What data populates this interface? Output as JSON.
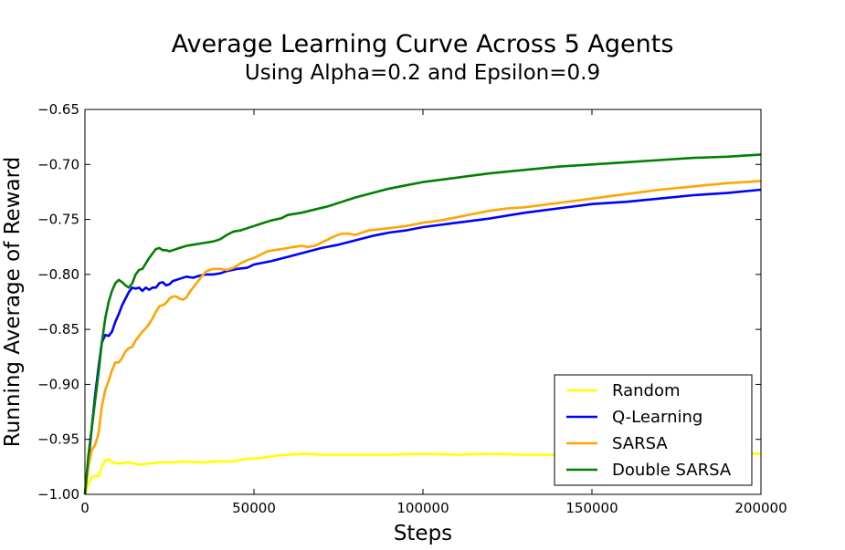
{
  "chart_data": {
    "type": "line",
    "title": "Average Learning Curve Across 5 Agents",
    "subtitle": "Using Alpha=0.2 and Epsilon=0.9",
    "xlabel": "Steps",
    "ylabel": "Running Average of Reward",
    "xlim": [
      0,
      200000
    ],
    "ylim": [
      -1.0,
      -0.65
    ],
    "x_ticks": [
      0,
      50000,
      100000,
      150000,
      200000
    ],
    "x_tick_labels": [
      "0",
      "50000",
      "100000",
      "150000",
      "200000"
    ],
    "y_ticks": [
      -1.0,
      -0.95,
      -0.9,
      -0.85,
      -0.8,
      -0.75,
      -0.7,
      -0.65
    ],
    "y_tick_labels": [
      "−1.00",
      "−0.95",
      "−0.90",
      "−0.85",
      "−0.80",
      "−0.75",
      "−0.70",
      "−0.65"
    ],
    "grid": false,
    "legend_position": "bottom-right",
    "series": [
      {
        "name": "Random",
        "color": "#ffff00",
        "points": [
          [
            0,
            -1.0
          ],
          [
            1000,
            -0.99
          ],
          [
            2000,
            -0.985
          ],
          [
            3000,
            -0.983
          ],
          [
            4000,
            -0.984
          ],
          [
            5000,
            -0.975
          ],
          [
            6000,
            -0.969
          ],
          [
            7000,
            -0.968
          ],
          [
            8000,
            -0.971
          ],
          [
            10000,
            -0.972
          ],
          [
            13000,
            -0.971
          ],
          [
            16000,
            -0.973
          ],
          [
            19000,
            -0.972
          ],
          [
            22000,
            -0.971
          ],
          [
            26000,
            -0.971
          ],
          [
            30000,
            -0.97
          ],
          [
            35000,
            -0.971
          ],
          [
            40000,
            -0.97
          ],
          [
            44000,
            -0.97
          ],
          [
            47000,
            -0.968
          ],
          [
            52000,
            -0.967
          ],
          [
            56000,
            -0.965
          ],
          [
            60000,
            -0.964
          ],
          [
            65000,
            -0.963
          ],
          [
            70000,
            -0.964
          ],
          [
            80000,
            -0.964
          ],
          [
            90000,
            -0.964
          ],
          [
            100000,
            -0.963
          ],
          [
            110000,
            -0.964
          ],
          [
            120000,
            -0.963
          ],
          [
            130000,
            -0.964
          ],
          [
            140000,
            -0.964
          ],
          [
            150000,
            -0.963
          ],
          [
            160000,
            -0.963
          ],
          [
            170000,
            -0.964
          ],
          [
            180000,
            -0.963
          ],
          [
            190000,
            -0.963
          ],
          [
            200000,
            -0.963
          ]
        ]
      },
      {
        "name": "Q-Learning",
        "color": "#0000ff",
        "points": [
          [
            0,
            -1.0
          ],
          [
            1000,
            -0.97
          ],
          [
            2000,
            -0.94
          ],
          [
            3000,
            -0.91
          ],
          [
            4000,
            -0.885
          ],
          [
            5000,
            -0.862
          ],
          [
            6000,
            -0.855
          ],
          [
            7000,
            -0.856
          ],
          [
            8000,
            -0.852
          ],
          [
            9000,
            -0.843
          ],
          [
            10000,
            -0.836
          ],
          [
            11000,
            -0.828
          ],
          [
            12000,
            -0.822
          ],
          [
            13000,
            -0.816
          ],
          [
            14000,
            -0.812
          ],
          [
            15000,
            -0.813
          ],
          [
            16000,
            -0.812
          ],
          [
            17000,
            -0.815
          ],
          [
            18000,
            -0.812
          ],
          [
            19000,
            -0.814
          ],
          [
            20000,
            -0.812
          ],
          [
            21000,
            -0.812
          ],
          [
            22000,
            -0.808
          ],
          [
            23000,
            -0.807
          ],
          [
            24000,
            -0.81
          ],
          [
            25000,
            -0.809
          ],
          [
            26000,
            -0.806
          ],
          [
            28000,
            -0.804
          ],
          [
            30000,
            -0.802
          ],
          [
            32000,
            -0.803
          ],
          [
            34000,
            -0.801
          ],
          [
            36000,
            -0.8
          ],
          [
            38000,
            -0.8
          ],
          [
            40000,
            -0.799
          ],
          [
            42000,
            -0.797
          ],
          [
            45000,
            -0.795
          ],
          [
            48000,
            -0.794
          ],
          [
            50000,
            -0.791
          ],
          [
            55000,
            -0.788
          ],
          [
            60000,
            -0.784
          ],
          [
            65000,
            -0.78
          ],
          [
            70000,
            -0.776
          ],
          [
            75000,
            -0.773
          ],
          [
            80000,
            -0.769
          ],
          [
            85000,
            -0.765
          ],
          [
            90000,
            -0.762
          ],
          [
            95000,
            -0.76
          ],
          [
            100000,
            -0.757
          ],
          [
            110000,
            -0.753
          ],
          [
            120000,
            -0.749
          ],
          [
            130000,
            -0.744
          ],
          [
            140000,
            -0.74
          ],
          [
            150000,
            -0.736
          ],
          [
            160000,
            -0.734
          ],
          [
            170000,
            -0.731
          ],
          [
            180000,
            -0.728
          ],
          [
            190000,
            -0.726
          ],
          [
            200000,
            -0.723
          ]
        ]
      },
      {
        "name": "SARSA",
        "color": "#ffa500",
        "points": [
          [
            0,
            -1.0
          ],
          [
            1000,
            -0.975
          ],
          [
            2000,
            -0.96
          ],
          [
            3000,
            -0.955
          ],
          [
            4000,
            -0.945
          ],
          [
            5000,
            -0.92
          ],
          [
            6000,
            -0.905
          ],
          [
            7000,
            -0.897
          ],
          [
            8000,
            -0.887
          ],
          [
            9000,
            -0.88
          ],
          [
            10000,
            -0.88
          ],
          [
            11000,
            -0.876
          ],
          [
            12000,
            -0.87
          ],
          [
            13000,
            -0.867
          ],
          [
            14000,
            -0.866
          ],
          [
            15000,
            -0.86
          ],
          [
            16000,
            -0.856
          ],
          [
            17000,
            -0.852
          ],
          [
            18000,
            -0.849
          ],
          [
            19000,
            -0.845
          ],
          [
            20000,
            -0.84
          ],
          [
            21000,
            -0.834
          ],
          [
            22000,
            -0.829
          ],
          [
            23000,
            -0.828
          ],
          [
            24000,
            -0.826
          ],
          [
            25000,
            -0.822
          ],
          [
            26000,
            -0.82
          ],
          [
            27000,
            -0.82
          ],
          [
            28000,
            -0.822
          ],
          [
            29000,
            -0.823
          ],
          [
            30000,
            -0.821
          ],
          [
            31000,
            -0.816
          ],
          [
            32000,
            -0.812
          ],
          [
            33000,
            -0.808
          ],
          [
            34000,
            -0.804
          ],
          [
            35000,
            -0.8
          ],
          [
            36000,
            -0.797
          ],
          [
            38000,
            -0.795
          ],
          [
            40000,
            -0.795
          ],
          [
            42000,
            -0.796
          ],
          [
            44000,
            -0.794
          ],
          [
            46000,
            -0.79
          ],
          [
            48000,
            -0.787
          ],
          [
            50000,
            -0.785
          ],
          [
            52000,
            -0.782
          ],
          [
            54000,
            -0.779
          ],
          [
            56000,
            -0.778
          ],
          [
            58000,
            -0.777
          ],
          [
            60000,
            -0.776
          ],
          [
            62000,
            -0.775
          ],
          [
            64000,
            -0.774
          ],
          [
            66000,
            -0.775
          ],
          [
            68000,
            -0.774
          ],
          [
            70000,
            -0.771
          ],
          [
            72000,
            -0.768
          ],
          [
            74000,
            -0.765
          ],
          [
            76000,
            -0.763
          ],
          [
            78000,
            -0.763
          ],
          [
            80000,
            -0.764
          ],
          [
            84000,
            -0.76
          ],
          [
            90000,
            -0.758
          ],
          [
            95000,
            -0.756
          ],
          [
            100000,
            -0.753
          ],
          [
            105000,
            -0.751
          ],
          [
            110000,
            -0.748
          ],
          [
            115000,
            -0.745
          ],
          [
            120000,
            -0.742
          ],
          [
            125000,
            -0.74
          ],
          [
            130000,
            -0.739
          ],
          [
            140000,
            -0.735
          ],
          [
            150000,
            -0.731
          ],
          [
            160000,
            -0.727
          ],
          [
            170000,
            -0.723
          ],
          [
            180000,
            -0.72
          ],
          [
            190000,
            -0.717
          ],
          [
            200000,
            -0.715
          ]
        ]
      },
      {
        "name": "Double SARSA",
        "color": "#008000",
        "points": [
          [
            0,
            -1.0
          ],
          [
            1000,
            -0.965
          ],
          [
            2000,
            -0.94
          ],
          [
            3000,
            -0.915
          ],
          [
            4000,
            -0.89
          ],
          [
            5000,
            -0.862
          ],
          [
            6000,
            -0.84
          ],
          [
            7000,
            -0.825
          ],
          [
            8000,
            -0.815
          ],
          [
            9000,
            -0.808
          ],
          [
            10000,
            -0.805
          ],
          [
            11000,
            -0.807
          ],
          [
            12000,
            -0.81
          ],
          [
            13000,
            -0.812
          ],
          [
            14000,
            -0.808
          ],
          [
            15000,
            -0.8
          ],
          [
            16000,
            -0.796
          ],
          [
            17000,
            -0.795
          ],
          [
            18000,
            -0.79
          ],
          [
            19000,
            -0.785
          ],
          [
            20000,
            -0.781
          ],
          [
            21000,
            -0.777
          ],
          [
            22000,
            -0.776
          ],
          [
            23000,
            -0.778
          ],
          [
            24000,
            -0.778
          ],
          [
            25000,
            -0.779
          ],
          [
            26000,
            -0.778
          ],
          [
            28000,
            -0.776
          ],
          [
            30000,
            -0.774
          ],
          [
            32000,
            -0.773
          ],
          [
            34000,
            -0.772
          ],
          [
            36000,
            -0.771
          ],
          [
            38000,
            -0.77
          ],
          [
            40000,
            -0.768
          ],
          [
            42000,
            -0.764
          ],
          [
            44000,
            -0.761
          ],
          [
            46000,
            -0.76
          ],
          [
            48000,
            -0.758
          ],
          [
            50000,
            -0.756
          ],
          [
            52000,
            -0.754
          ],
          [
            55000,
            -0.751
          ],
          [
            58000,
            -0.749
          ],
          [
            60000,
            -0.746
          ],
          [
            64000,
            -0.744
          ],
          [
            68000,
            -0.741
          ],
          [
            72000,
            -0.738
          ],
          [
            76000,
            -0.734
          ],
          [
            80000,
            -0.73
          ],
          [
            85000,
            -0.726
          ],
          [
            90000,
            -0.722
          ],
          [
            95000,
            -0.719
          ],
          [
            100000,
            -0.716
          ],
          [
            110000,
            -0.712
          ],
          [
            120000,
            -0.708
          ],
          [
            130000,
            -0.705
          ],
          [
            140000,
            -0.702
          ],
          [
            150000,
            -0.7
          ],
          [
            160000,
            -0.698
          ],
          [
            170000,
            -0.696
          ],
          [
            180000,
            -0.694
          ],
          [
            190000,
            -0.693
          ],
          [
            200000,
            -0.691
          ]
        ]
      }
    ]
  }
}
